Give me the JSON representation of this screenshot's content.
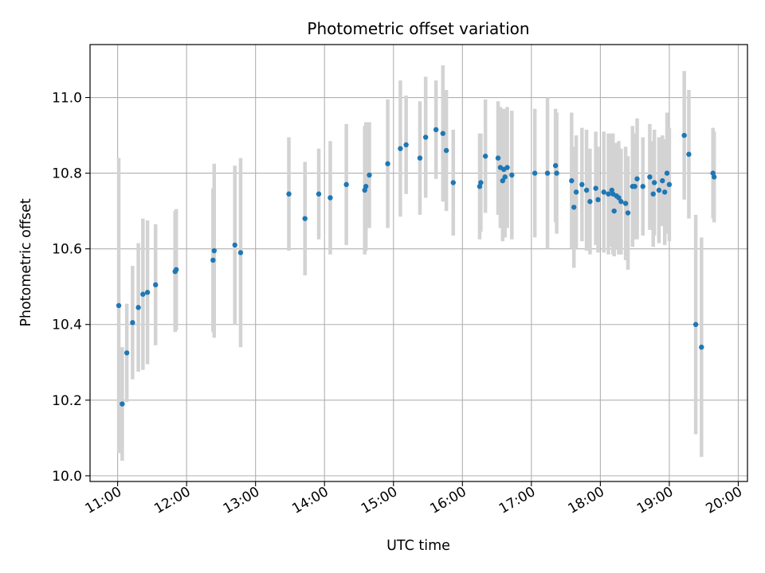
{
  "chart_data": {
    "type": "scatter",
    "title": "Photometric offset variation",
    "xlabel": "UTC time",
    "ylabel": "Photometric offset",
    "xlim": [
      "10:36",
      "20:08"
    ],
    "ylim": [
      9.985,
      11.14
    ],
    "xticks": [
      "11:00",
      "12:00",
      "13:00",
      "14:00",
      "15:00",
      "16:00",
      "17:00",
      "18:00",
      "19:00",
      "20:00"
    ],
    "yticks": [
      "10.0",
      "10.2",
      "10.4",
      "10.6",
      "10.8",
      "11.0"
    ],
    "grid": true,
    "legend": "none",
    "colors": {
      "point": "#1f77b4",
      "errorbar": "#d3d3d3",
      "grid": "#b0b0b0"
    },
    "series": [
      {
        "x": [
          "11:01",
          "11:04",
          "11:08",
          "11:13",
          "11:18",
          "11:22",
          "11:26",
          "11:33",
          "11:50",
          "11:51",
          "12:23",
          "12:24",
          "12:42",
          "12:47",
          "13:29",
          "13:43",
          "13:55",
          "14:05",
          "14:19",
          "14:35",
          "14:36",
          "14:39",
          "14:55",
          "15:06",
          "15:11",
          "15:23",
          "15:28",
          "15:37",
          "15:43",
          "15:46",
          "15:52",
          "16:15",
          "16:16",
          "16:20",
          "16:31",
          "16:33",
          "16:35",
          "16:36",
          "16:37",
          "16:39",
          "16:43",
          "17:03",
          "17:14",
          "17:21",
          "17:22",
          "17:35",
          "17:37",
          "17:39",
          "17:44",
          "17:48",
          "17:51",
          "17:56",
          "17:58",
          "18:03",
          "18:07",
          "18:10",
          "18:11",
          "18:12",
          "18:14",
          "18:16",
          "18:18",
          "18:22",
          "18:24",
          "18:28",
          "18:30",
          "18:32",
          "18:37",
          "18:43",
          "18:46",
          "18:47",
          "18:51",
          "18:54",
          "18:56",
          "18:58",
          "19:00",
          "19:13",
          "19:17",
          "19:23",
          "19:28",
          "19:38",
          "19:39"
        ],
        "y": [
          10.45,
          10.19,
          10.325,
          10.405,
          10.445,
          10.48,
          10.485,
          10.505,
          10.54,
          10.545,
          10.57,
          10.595,
          10.61,
          10.59,
          10.745,
          10.68,
          10.745,
          10.735,
          10.77,
          10.755,
          10.765,
          10.795,
          10.825,
          10.865,
          10.875,
          10.84,
          10.895,
          10.915,
          10.905,
          10.86,
          10.775,
          10.765,
          10.775,
          10.845,
          10.84,
          10.815,
          10.78,
          10.81,
          10.79,
          10.815,
          10.795,
          10.8,
          10.8,
          10.82,
          10.8,
          10.78,
          10.71,
          10.75,
          10.77,
          10.755,
          10.725,
          10.76,
          10.73,
          10.75,
          10.745,
          10.755,
          10.745,
          10.7,
          10.74,
          10.735,
          10.725,
          10.72,
          10.695,
          10.765,
          10.765,
          10.785,
          10.765,
          10.79,
          10.745,
          10.775,
          10.755,
          10.78,
          10.75,
          10.8,
          10.77,
          10.9,
          10.85,
          10.4,
          10.34,
          10.8,
          10.79
        ],
        "yerr": [
          0.39,
          0.15,
          0.13,
          0.15,
          0.17,
          0.2,
          0.19,
          0.16,
          0.16,
          0.16,
          0.19,
          0.23,
          0.21,
          0.25,
          0.15,
          0.15,
          0.12,
          0.15,
          0.16,
          0.17,
          0.17,
          0.14,
          0.17,
          0.18,
          0.13,
          0.15,
          0.16,
          0.13,
          0.18,
          0.16,
          0.14,
          0.14,
          0.13,
          0.15,
          0.15,
          0.16,
          0.16,
          0.16,
          0.16,
          0.16,
          0.17,
          0.17,
          0.2,
          0.15,
          0.16,
          0.18,
          0.16,
          0.15,
          0.15,
          0.16,
          0.14,
          0.15,
          0.14,
          0.16,
          0.16,
          0.15,
          0.16,
          0.12,
          0.14,
          0.15,
          0.14,
          0.15,
          0.15,
          0.16,
          0.14,
          0.16,
          0.13,
          0.14,
          0.14,
          0.14,
          0.14,
          0.12,
          0.14,
          0.16,
          0.15,
          0.17,
          0.17,
          0.29,
          0.29,
          0.12,
          0.12
        ]
      }
    ]
  }
}
